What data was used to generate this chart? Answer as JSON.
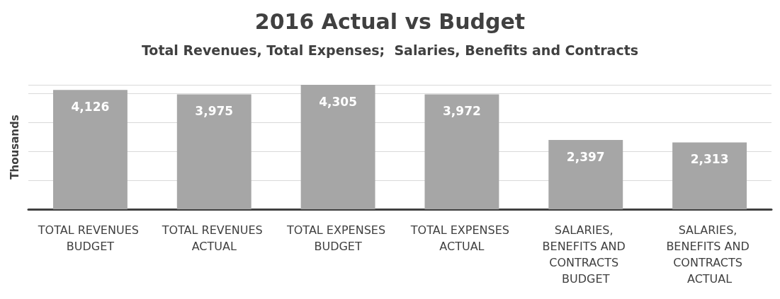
{
  "chart_data": {
    "type": "bar",
    "title": "2016 Actual vs Budget",
    "subtitle": "Total Revenues, Total Expenses;  Salaries, Benefits and Contracts",
    "ylabel": "Thousands",
    "categories": [
      "TOTAL REVENUES BUDGET",
      "TOTAL REVENUES ACTUAL",
      "TOTAL EXPENSES BUDGET",
      "TOTAL EXPENSES ACTUAL",
      "SALARIES, BENEFITS AND CONTRACTS BUDGET",
      "SALARIES, BENEFITS AND CONTRACTS ACTUAL"
    ],
    "values": [
      4126,
      3975,
      4305,
      3972,
      2397,
      2313
    ],
    "color": "#a6a6a6",
    "value_labels": [
      "4,126",
      "3,975",
      "4,305",
      "3,972",
      "2,397",
      "2,313"
    ],
    "tick_labels": "x",
    "grid": "y"
  }
}
